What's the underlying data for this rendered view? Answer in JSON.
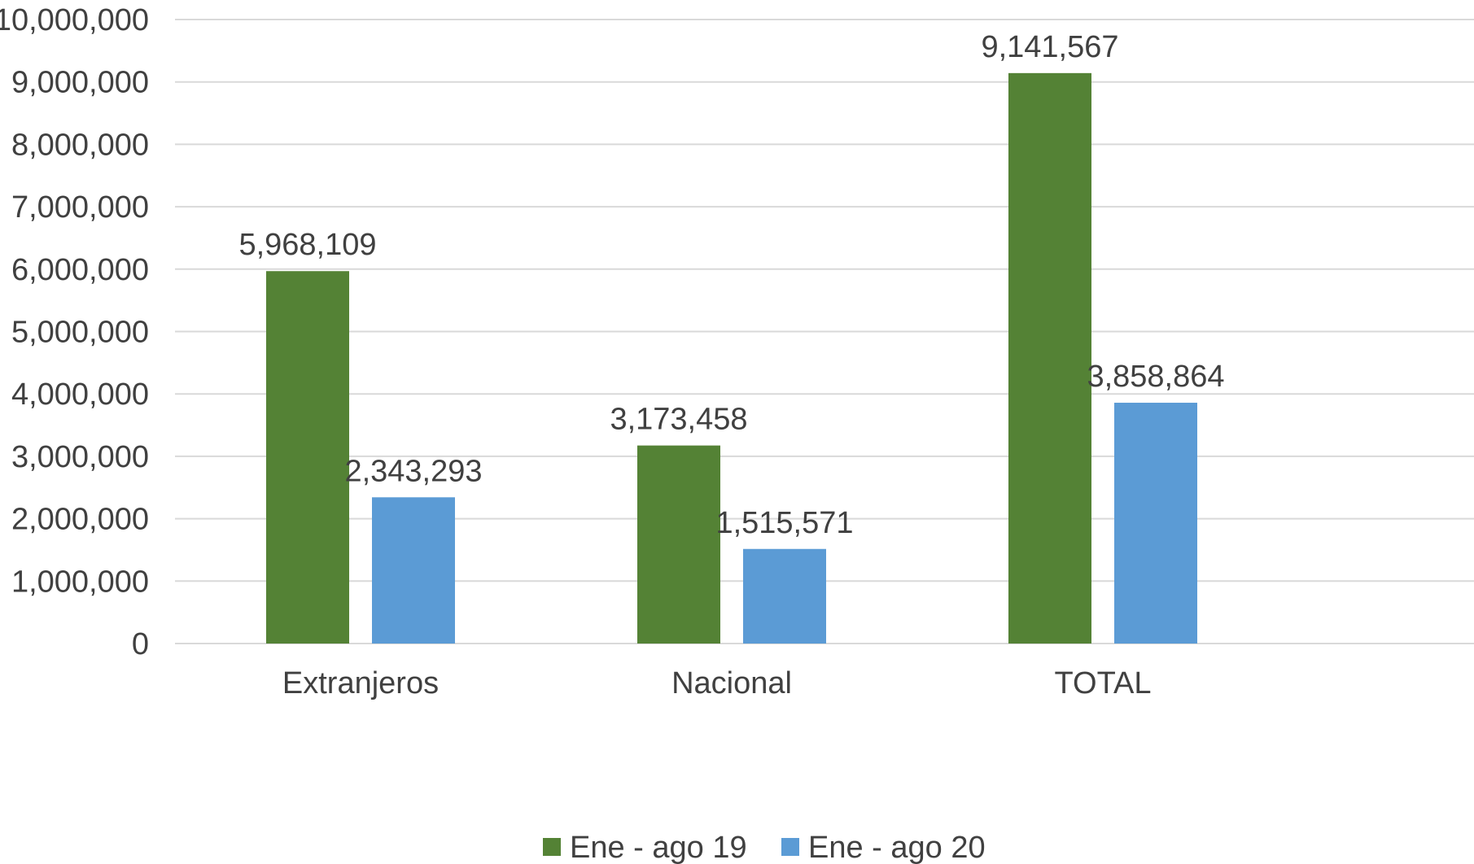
{
  "chart_data": {
    "type": "bar",
    "categories": [
      "Extranjeros",
      "Nacional",
      "TOTAL"
    ],
    "series": [
      {
        "name": "Ene - ago 19",
        "color": "#548235",
        "values": [
          5968109,
          3173458,
          9141567
        ],
        "labels": [
          "5,968,109",
          "3,173,458",
          "9,141,567"
        ]
      },
      {
        "name": "Ene - ago 20",
        "color": "#5b9bd5",
        "values": [
          2343293,
          1515571,
          3858864
        ],
        "labels": [
          "2,343,293",
          "1,515,571",
          "3,858,864"
        ]
      }
    ],
    "ylim": [
      0,
      10000000
    ],
    "yticks": [
      0,
      1000000,
      2000000,
      3000000,
      4000000,
      5000000,
      6000000,
      7000000,
      8000000,
      9000000,
      10000000
    ],
    "ytick_labels": [
      "0",
      "1,000,000",
      "2,000,000",
      "3,000,000",
      "4,000,000",
      "5,000,000",
      "6,000,000",
      "7,000,000",
      "8,000,000",
      "9,000,000",
      "10,000,000"
    ],
    "grid": true,
    "legend_position": "bottom",
    "title": "",
    "xlabel": "",
    "ylabel": ""
  }
}
